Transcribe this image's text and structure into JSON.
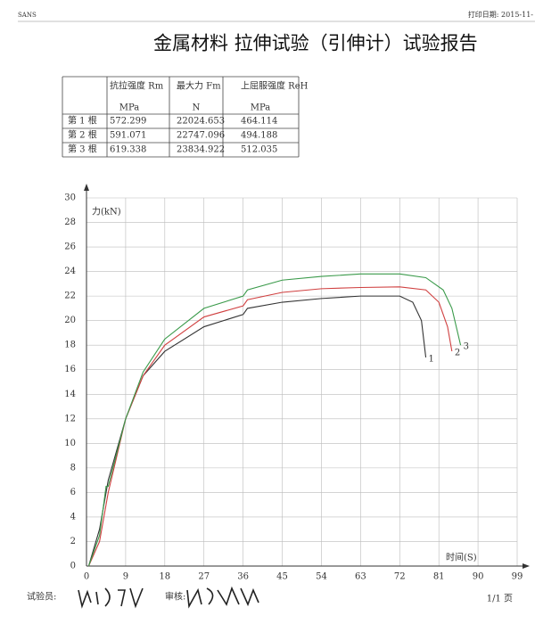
{
  "header": {
    "left": "SANS",
    "right": "打印日期: 2015-11-",
    "title": "金属材料 拉伸试验（引伸计）试验报告"
  },
  "table": {
    "columns": [
      "抗拉强度 Rm",
      "最大力 Fm",
      "上屈服强度 ReH"
    ],
    "units": [
      "MPa",
      "N",
      "MPa"
    ],
    "rows": [
      [
        "第 1 根",
        "572.299",
        "22024.653",
        "464.114"
      ],
      [
        "第 2 根",
        "591.071",
        "22747.096",
        "494.188"
      ],
      [
        "第 3 根",
        "619.338",
        "23834.922",
        "512.035"
      ]
    ]
  },
  "chart_data": {
    "type": "line",
    "ylabel": "力(kN)",
    "xlabel": "时间(S)",
    "xlim": [
      0,
      99
    ],
    "ylim": [
      0,
      30
    ],
    "xticks": [
      0,
      9,
      18,
      27,
      36,
      45,
      54,
      63,
      72,
      81,
      90,
      99
    ],
    "yticks": [
      0,
      2,
      4,
      6,
      8,
      10,
      12,
      14,
      16,
      18,
      20,
      22,
      24,
      26,
      28,
      30
    ],
    "grid": true,
    "series": [
      {
        "name": "1",
        "color": "#333333",
        "x": [
          0.5,
          3,
          5,
          9,
          13,
          18,
          27,
          36,
          37,
          45,
          54,
          63,
          72,
          75,
          77,
          78
        ],
        "values": [
          0,
          3,
          7,
          12,
          15.5,
          17.5,
          19.5,
          20.5,
          21,
          21.5,
          21.8,
          22,
          22,
          21.5,
          20,
          17
        ]
      },
      {
        "name": "2",
        "color": "#d04040",
        "x": [
          0.5,
          3,
          5,
          9,
          13,
          18,
          27,
          36,
          37,
          45,
          54,
          63,
          72,
          78,
          81,
          83,
          84
        ],
        "values": [
          0,
          2,
          6,
          12,
          15.5,
          18,
          20.3,
          21.2,
          21.7,
          22.3,
          22.6,
          22.7,
          22.75,
          22.5,
          21.5,
          19.5,
          17.5
        ]
      },
      {
        "name": "3",
        "color": "#3a9a4a",
        "x": [
          0.5,
          3,
          4.5,
          5,
          9,
          13,
          18,
          27,
          36,
          37,
          45,
          54,
          63,
          72,
          78,
          82,
          84,
          86
        ],
        "values": [
          0,
          2.5,
          6.5,
          6.5,
          12,
          15.8,
          18.5,
          21,
          22,
          22.5,
          23.3,
          23.6,
          23.8,
          23.8,
          23.5,
          22.5,
          21,
          18
        ]
      }
    ]
  },
  "footer": {
    "tester": "试验员:",
    "reviewer": "审核:",
    "page": "1/1 页"
  }
}
